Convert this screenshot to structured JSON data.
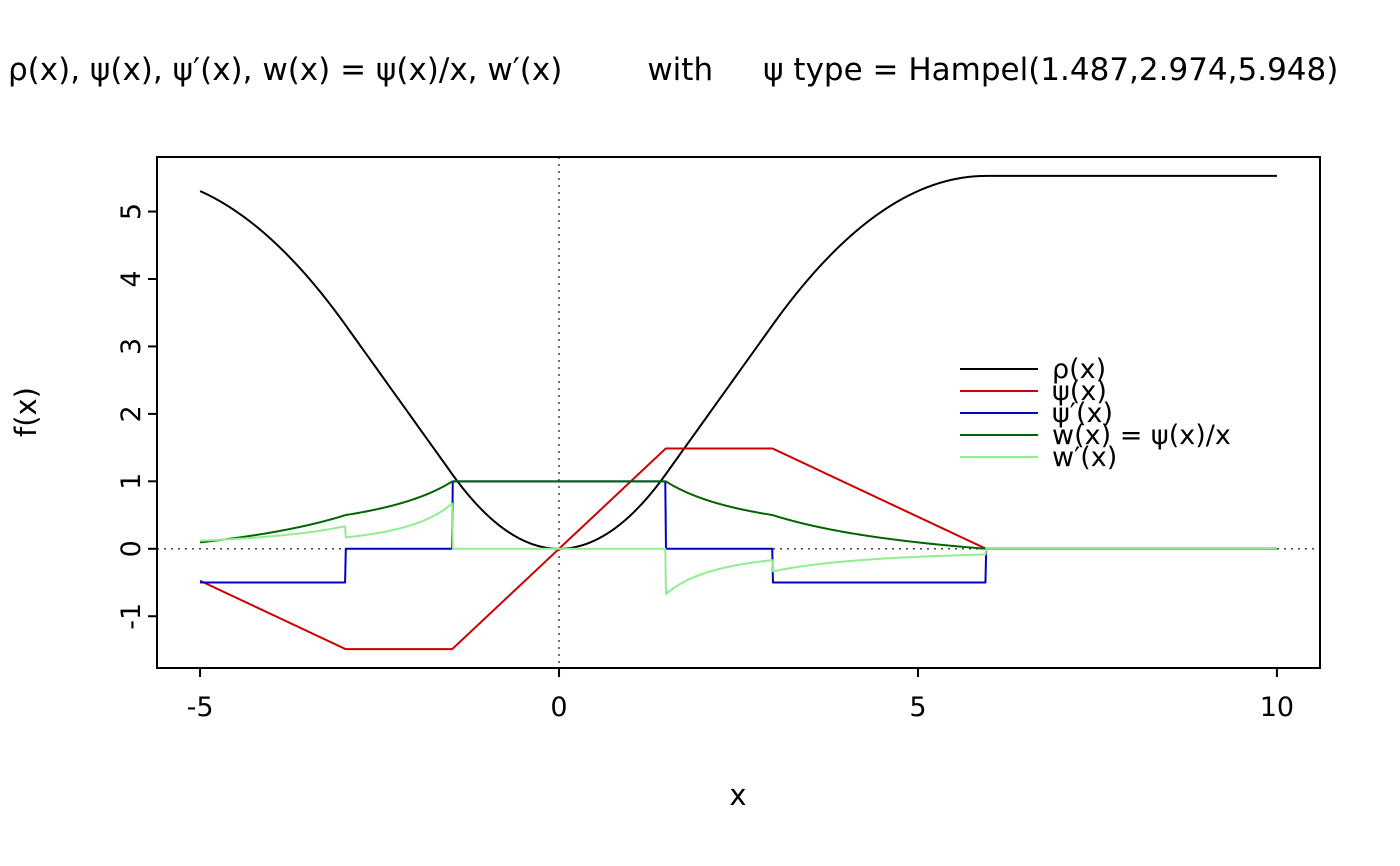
{
  "chart_data": {
    "type": "line",
    "title": "ρ(x), ψ(x), ψ′(x), w(x) = ψ(x)/x, w′(x)   with   ψ type = Hampel(1.487,2.974,5.948)",
    "title_parts": [
      "ρ(x), ψ(x), ψ′(x), w(x) = ψ(x)/x, w′(x)",
      "with",
      "ψ type = Hampel(1.487,2.974,5.948)"
    ],
    "xlabel": "x",
    "ylabel": "f(x)",
    "xlim": [
      -5,
      10
    ],
    "ylim": [
      -1.487,
      5.528
    ],
    "axis_expansion": 0.04,
    "xticks": [
      -5,
      0,
      5,
      10
    ],
    "yticks": [
      -1,
      0,
      1,
      2,
      3,
      4,
      5
    ],
    "grid": false,
    "legend_position": "right-center",
    "psi_type": "Hampel",
    "psi_params": {
      "a": 1.487,
      "b": 2.974,
      "c": 5.948
    },
    "x_sample": {
      "from": -5,
      "to": 10,
      "step": 0.01
    },
    "reference_lines": {
      "h": 0,
      "v": 0,
      "style": "dotted"
    },
    "series": [
      {
        "name": "rho",
        "label": "ρ(x)",
        "color": "#000000",
        "key_points": [
          [
            -5,
            5.303
          ],
          [
            -2.974,
            3.317
          ],
          [
            -1.487,
            1.106
          ],
          [
            0,
            0
          ],
          [
            1.487,
            1.106
          ],
          [
            2.974,
            3.317
          ],
          [
            5.948,
            5.528
          ],
          [
            10,
            5.528
          ]
        ]
      },
      {
        "name": "psi",
        "label": "ψ(x)",
        "color": "#cc0000",
        "key_points": [
          [
            -5,
            -0.474
          ],
          [
            -2.974,
            -1.487
          ],
          [
            -1.487,
            -1.487
          ],
          [
            0,
            0
          ],
          [
            1.487,
            1.487
          ],
          [
            2.974,
            1.487
          ],
          [
            5.948,
            0
          ],
          [
            10,
            0
          ]
        ]
      },
      {
        "name": "psi_prime",
        "label": "ψ′(x)",
        "color": "#0000cc",
        "key_points": [
          [
            -5,
            -0.5
          ],
          [
            -2.974,
            -0.5
          ],
          [
            -2.974,
            0
          ],
          [
            -1.487,
            0
          ],
          [
            -1.487,
            1
          ],
          [
            1.487,
            1
          ],
          [
            1.487,
            0
          ],
          [
            2.974,
            0
          ],
          [
            2.974,
            -0.5
          ],
          [
            5.948,
            -0.5
          ],
          [
            5.948,
            0
          ],
          [
            10,
            0
          ]
        ]
      },
      {
        "name": "weight",
        "label": "w(x) = ψ(x)/x",
        "color": "#006400",
        "key_points": [
          [
            -5,
            0.095
          ],
          [
            -2.974,
            0.5
          ],
          [
            -1.487,
            1
          ],
          [
            1.487,
            1
          ],
          [
            2.974,
            0.5
          ],
          [
            5.948,
            0
          ],
          [
            10,
            0
          ]
        ]
      },
      {
        "name": "weight_prime",
        "label": "w′(x)",
        "color": "#90ee90",
        "key_points": [
          [
            -5,
            0.119
          ],
          [
            -2.974,
            0.336
          ],
          [
            -2.974,
            0.168
          ],
          [
            -1.487,
            0.672
          ],
          [
            -1.487,
            0
          ],
          [
            1.487,
            0
          ],
          [
            1.487,
            -0.672
          ],
          [
            2.974,
            -0.168
          ],
          [
            2.974,
            -0.336
          ],
          [
            5.948,
            -0.084
          ],
          [
            5.948,
            0
          ],
          [
            10,
            0
          ]
        ]
      }
    ]
  }
}
